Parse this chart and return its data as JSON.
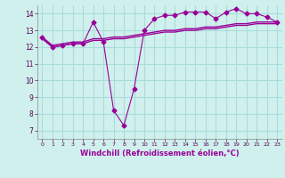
{
  "bg_color": "#cff0ec",
  "grid_color": "#aaddda",
  "line_color": "#990099",
  "xlabel": "Windchill (Refroidissement éolien,°C)",
  "xlabel_color": "#990099",
  "xlim": [
    -0.5,
    23.5
  ],
  "ylim": [
    6.5,
    14.5
  ],
  "yticks": [
    7,
    8,
    9,
    10,
    11,
    12,
    13,
    14
  ],
  "xticks": [
    0,
    1,
    2,
    3,
    4,
    5,
    6,
    7,
    8,
    9,
    10,
    11,
    12,
    13,
    14,
    15,
    16,
    17,
    18,
    19,
    20,
    21,
    22,
    23
  ],
  "series1_x": [
    0,
    1,
    2,
    3,
    4,
    5,
    6,
    7,
    8,
    9,
    10,
    11,
    12,
    13,
    14,
    15,
    16,
    17,
    18,
    19,
    20,
    21,
    22,
    23
  ],
  "series1_y": [
    12.6,
    12.0,
    12.1,
    12.2,
    12.2,
    13.5,
    12.3,
    8.2,
    7.3,
    9.5,
    13.0,
    13.7,
    13.9,
    13.9,
    14.1,
    14.1,
    14.1,
    13.7,
    14.1,
    14.3,
    14.0,
    14.0,
    13.8,
    13.5
  ],
  "series2_x": [
    0,
    1,
    2,
    3,
    4,
    5,
    6,
    7,
    8,
    9,
    10,
    11,
    12,
    13,
    14,
    15,
    16,
    17,
    18,
    19,
    20,
    21,
    22,
    23
  ],
  "series2_y": [
    12.6,
    12.1,
    12.2,
    12.3,
    12.3,
    12.5,
    12.5,
    12.6,
    12.6,
    12.7,
    12.8,
    12.9,
    13.0,
    13.0,
    13.1,
    13.1,
    13.2,
    13.2,
    13.3,
    13.4,
    13.4,
    13.5,
    13.5,
    13.5
  ],
  "series3_x": [
    0,
    1,
    2,
    3,
    4,
    5,
    6,
    7,
    8,
    9,
    10,
    11,
    12,
    13,
    14,
    15,
    16,
    17,
    18,
    19,
    20,
    21,
    22,
    23
  ],
  "series3_y": [
    12.5,
    12.0,
    12.1,
    12.2,
    12.2,
    12.4,
    12.4,
    12.5,
    12.5,
    12.6,
    12.7,
    12.8,
    12.9,
    12.9,
    13.0,
    13.0,
    13.1,
    13.1,
    13.2,
    13.3,
    13.3,
    13.4,
    13.4,
    13.4
  ]
}
